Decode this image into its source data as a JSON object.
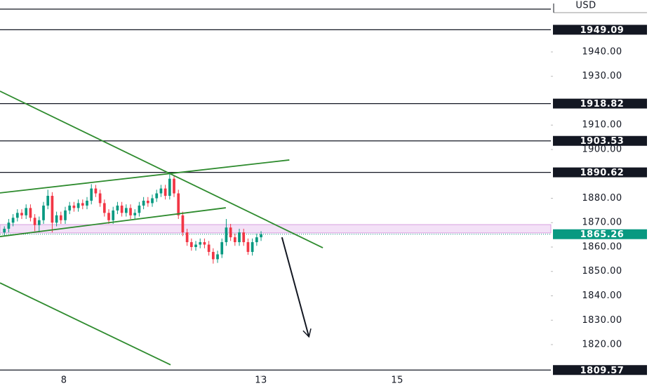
{
  "chart_data": {
    "type": "candlestick",
    "currency": "USD",
    "xlim": [
      0,
      126.6
    ],
    "ylim": [
      1807.34,
      1961.29
    ],
    "xticks": [
      {
        "value": 14.7,
        "label": "8"
      },
      {
        "value": 60,
        "label": "13"
      },
      {
        "value": 91.3,
        "label": "15"
      }
    ],
    "yticks": [
      {
        "value": 1820,
        "label": "1820.00"
      },
      {
        "value": 1830,
        "label": "1830.00"
      },
      {
        "value": 1840,
        "label": "1840.00"
      },
      {
        "value": 1850,
        "label": "1850.00"
      },
      {
        "value": 1860,
        "label": "1860.00"
      },
      {
        "value": 1870,
        "label": "1870.00"
      },
      {
        "value": 1880,
        "label": "1880.00"
      },
      {
        "value": 1900,
        "label": "1900.00"
      },
      {
        "value": 1910,
        "label": "1910.00"
      },
      {
        "value": 1930,
        "label": "1930.00"
      },
      {
        "value": 1940,
        "label": "1940.00"
      }
    ],
    "levels": [
      1949.09,
      1918.82,
      1903.53,
      1890.62,
      1809.57
    ],
    "top_level": 1957.55,
    "last_price": 1865.26,
    "zone": [
      1865.8,
      1869.2
    ],
    "up_color": "#089981",
    "down_color": "#f23645",
    "line_color": "#2e8b2e",
    "x": [
      1,
      2,
      3,
      4,
      5,
      6,
      7,
      8,
      9,
      10,
      11,
      12,
      13,
      14,
      15,
      16,
      17,
      18,
      19,
      20,
      21,
      22,
      23,
      24,
      25,
      26,
      27,
      28,
      29,
      30,
      31,
      32,
      33,
      34,
      35,
      36,
      37,
      38,
      39,
      40,
      41,
      42,
      43,
      44,
      45,
      46,
      47,
      48,
      49,
      50,
      51,
      52,
      53,
      54,
      55,
      56,
      57,
      58,
      59,
      60
    ],
    "ohlc": [
      [
        1866,
        1868.5,
        1864.5,
        1867.5
      ],
      [
        1867.5,
        1871.5,
        1866,
        1870
      ],
      [
        1870,
        1873.5,
        1868.5,
        1872
      ],
      [
        1872,
        1875.5,
        1870.5,
        1874
      ],
      [
        1874,
        1875.5,
        1871.5,
        1873
      ],
      [
        1873,
        1877.5,
        1871.5,
        1876
      ],
      [
        1876,
        1877.5,
        1870.5,
        1872
      ],
      [
        1872,
        1873.5,
        1866.5,
        1869
      ],
      [
        1869,
        1872.5,
        1866,
        1871
      ],
      [
        1871,
        1878.5,
        1869.5,
        1877
      ],
      [
        1877,
        1883.5,
        1875.5,
        1881
      ],
      [
        1881,
        1882.5,
        1866,
        1870
      ],
      [
        1870,
        1874.5,
        1868.5,
        1873
      ],
      [
        1873,
        1874.5,
        1869.5,
        1871
      ],
      [
        1871,
        1876.5,
        1869.5,
        1875
      ],
      [
        1875,
        1878.5,
        1873.5,
        1877
      ],
      [
        1877,
        1878.5,
        1874.5,
        1876
      ],
      [
        1876,
        1879.5,
        1874.5,
        1878
      ],
      [
        1878,
        1879.5,
        1875.5,
        1877
      ],
      [
        1877,
        1880.5,
        1875.5,
        1879
      ],
      [
        1879,
        1885.8,
        1877.5,
        1884
      ],
      [
        1884,
        1885.5,
        1880.5,
        1882
      ],
      [
        1882,
        1883.5,
        1876.5,
        1878
      ],
      [
        1878,
        1879.5,
        1872.5,
        1874
      ],
      [
        1874,
        1875.5,
        1869.5,
        1871
      ],
      [
        1871,
        1876.5,
        1869.5,
        1875
      ],
      [
        1875,
        1878.5,
        1873.5,
        1877
      ],
      [
        1877,
        1878.5,
        1872.5,
        1874
      ],
      [
        1874,
        1877.5,
        1872.5,
        1876
      ],
      [
        1876,
        1877.5,
        1871.5,
        1873
      ],
      [
        1873,
        1875.5,
        1871.5,
        1874
      ],
      [
        1874,
        1878.5,
        1872.5,
        1877
      ],
      [
        1877,
        1880.5,
        1875.5,
        1879
      ],
      [
        1879,
        1880.5,
        1876.5,
        1878
      ],
      [
        1878,
        1881.5,
        1876.5,
        1880
      ],
      [
        1880,
        1883.5,
        1878.5,
        1882
      ],
      [
        1882,
        1885.5,
        1880.5,
        1884
      ],
      [
        1884,
        1885.5,
        1879.5,
        1881
      ],
      [
        1881,
        1890.6,
        1879.5,
        1888
      ],
      [
        1888,
        1889.5,
        1880.5,
        1882
      ],
      [
        1882,
        1883.5,
        1871.5,
        1873
      ],
      [
        1873,
        1874.5,
        1864.5,
        1866
      ],
      [
        1866,
        1867.5,
        1860.5,
        1862
      ],
      [
        1862,
        1863.5,
        1858.5,
        1860
      ],
      [
        1860,
        1862.5,
        1858.5,
        1861
      ],
      [
        1861,
        1863.5,
        1859.5,
        1862
      ],
      [
        1862,
        1863.5,
        1859.5,
        1861
      ],
      [
        1861,
        1862.5,
        1856.5,
        1858
      ],
      [
        1858,
        1859.5,
        1853.2,
        1855
      ],
      [
        1855,
        1858.5,
        1853.5,
        1857
      ],
      [
        1857,
        1863.5,
        1855.5,
        1862
      ],
      [
        1862,
        1871.5,
        1860.5,
        1868
      ],
      [
        1868,
        1869.5,
        1862.5,
        1864
      ],
      [
        1864,
        1865.5,
        1860.5,
        1862
      ],
      [
        1862,
        1867.5,
        1860.5,
        1866
      ],
      [
        1866,
        1867.5,
        1860.5,
        1862
      ],
      [
        1862,
        1863.5,
        1856.8,
        1858
      ],
      [
        1858,
        1863.5,
        1856.5,
        1862
      ],
      [
        1862,
        1865.5,
        1860.5,
        1864
      ],
      [
        1864,
        1866.5,
        1862.5,
        1865.26
      ]
    ],
    "trend_lines": [
      {
        "x": [
          0,
          74.2
        ],
        "y": [
          1923.9,
          1859.7
        ]
      },
      {
        "x": [
          0,
          66.5
        ],
        "y": [
          1882.2,
          1895.7
        ]
      },
      {
        "x": [
          0,
          51.9
        ],
        "y": [
          1864.3,
          1876.1
        ]
      },
      {
        "x": [
          0,
          39.2
        ],
        "y": [
          1845.3,
          1811.7
        ]
      }
    ],
    "arrow": {
      "x": [
        64.8,
        71.0
      ],
      "y": [
        1864.0,
        1823.2
      ]
    }
  }
}
